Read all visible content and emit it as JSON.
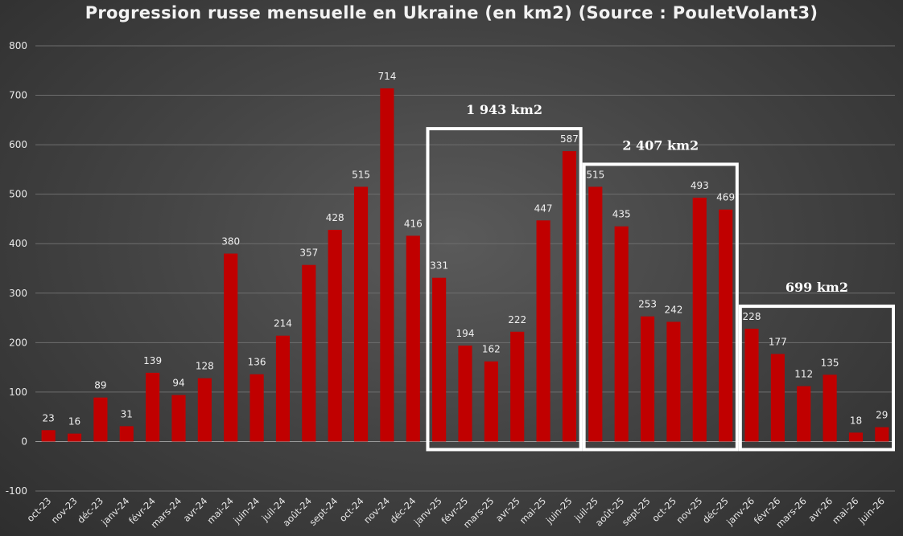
{
  "chart_data": {
    "type": "bar",
    "title": "Progression russe mensuelle en Ukraine (en km2) (Source : PouletVolant3)",
    "xlabel": "",
    "ylabel": "",
    "ylim": [
      -100,
      800
    ],
    "yticks": [
      -100,
      0,
      100,
      200,
      300,
      400,
      500,
      600,
      700,
      800
    ],
    "grid": true,
    "bar_color": "#c00000",
    "categories": [
      "oct-23",
      "nov-23",
      "déc-23",
      "janv-24",
      "févr-24",
      "mars-24",
      "avr-24",
      "mai-24",
      "juin-24",
      "juil-24",
      "août-24",
      "sept-24",
      "oct-24",
      "nov-24",
      "déc-24",
      "janv-25",
      "févr-25",
      "mars-25",
      "avr-25",
      "mai-25",
      "juin-25",
      "juil-25",
      "août-25",
      "sept-25",
      "oct-25",
      "nov-25",
      "déc-25",
      "janv-26",
      "févr-26",
      "mars-26",
      "avr-26",
      "mai-26",
      "juin-26"
    ],
    "values": [
      23,
      16,
      89,
      31,
      139,
      94,
      128,
      380,
      136,
      214,
      357,
      428,
      515,
      714,
      416,
      331,
      194,
      162,
      222,
      447,
      587,
      515,
      435,
      253,
      242,
      493,
      469,
      228,
      177,
      112,
      135,
      18,
      29
    ],
    "annotations": [
      {
        "label": "1 943 km2",
        "from": "janv-25",
        "to": "juin-25"
      },
      {
        "label": "2 407 km2",
        "from": "juil-25",
        "to": "déc-25"
      },
      {
        "label": "699 km2",
        "from": "janv-26",
        "to": "juin-26"
      }
    ]
  }
}
